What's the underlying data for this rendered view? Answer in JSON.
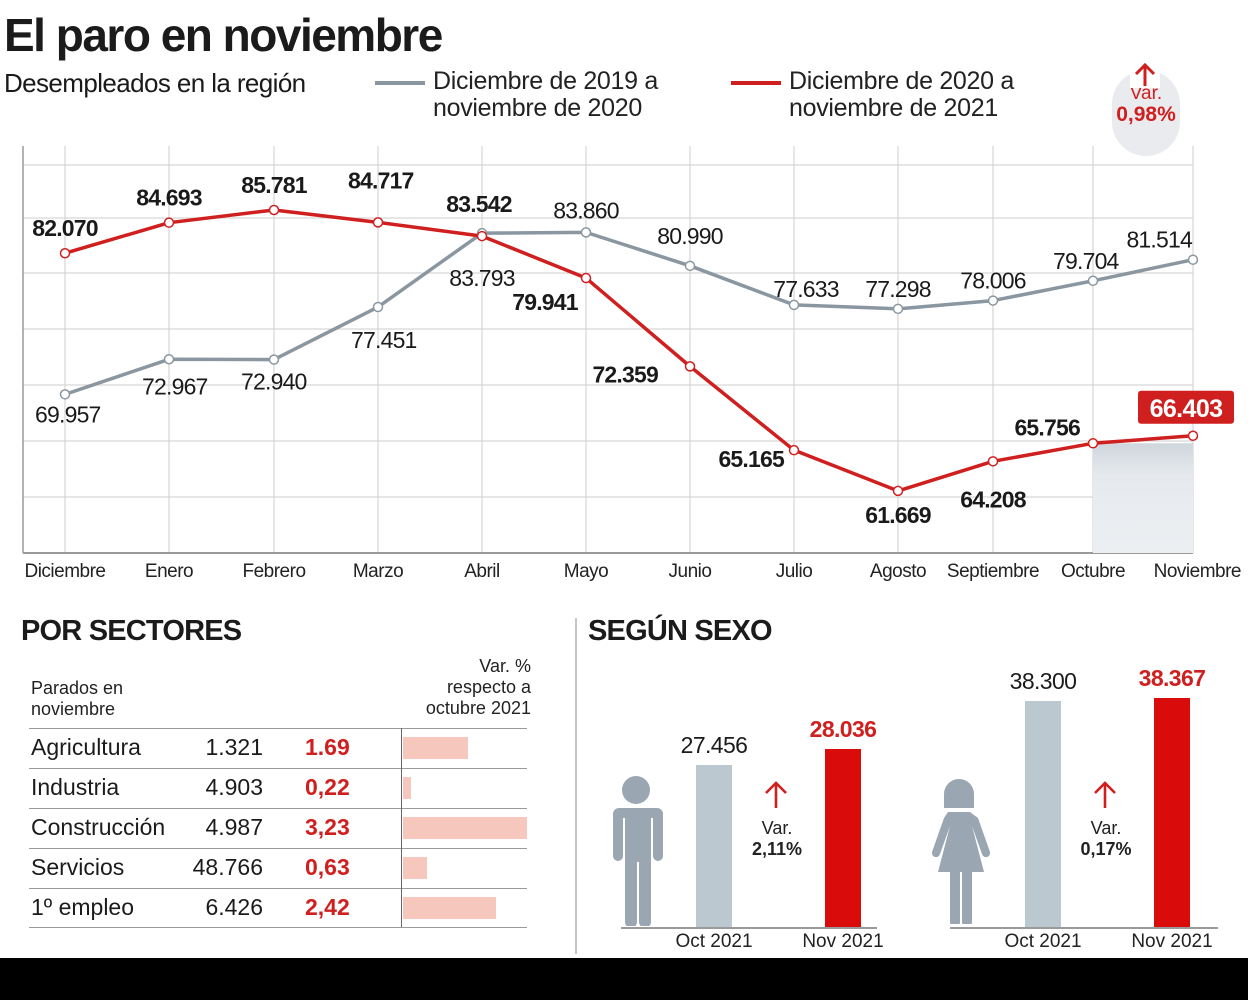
{
  "header": {
    "title": "El paro en noviembre",
    "subtitle": "Desempleados en la región",
    "legend": [
      {
        "line1": "Diciembre de 2019 a",
        "line2": "noviembre de 2020",
        "color": "#8a96a0"
      },
      {
        "line1": "Diciembre de 2020 a",
        "line2": "noviembre de 2021",
        "color": "#d01f1f"
      }
    ],
    "variation": {
      "label": "Var.",
      "value": "0,98%",
      "direction": "up"
    }
  },
  "chart_data": [
    {
      "type": "line",
      "title": "Desempleados en la región",
      "categories": [
        "Diciembre",
        "Enero",
        "Febrero",
        "Marzo",
        "Abril",
        "Mayo",
        "Junio",
        "Julio",
        "Agosto",
        "Septiembre",
        "Octubre",
        "Noviembre"
      ],
      "series": [
        {
          "name": "Diciembre de 2019 a noviembre de 2020",
          "color": "#8a96a0",
          "values": [
            69957,
            72967,
            72940,
            77451,
            83793,
            83860,
            80990,
            77633,
            77298,
            78006,
            79704,
            81514
          ],
          "labels": [
            "69.957",
            "72.967",
            "72.940",
            "77.451",
            "83.793",
            "83.860",
            "80.990",
            "77.633",
            "77.298",
            "78.006",
            "79.704",
            "81.514"
          ]
        },
        {
          "name": "Diciembre de 2020 a noviembre de 2021",
          "color": "#d01f1f",
          "values": [
            82070,
            84693,
            85781,
            84717,
            83542,
            79941,
            72359,
            65165,
            61669,
            64208,
            65756,
            66403
          ],
          "labels": [
            "82.070",
            "84.693",
            "85.781",
            "84.717",
            "83.542",
            "79.941",
            "72.359",
            "65.165",
            "61.669",
            "64.208",
            "65.756",
            "66.403"
          ]
        }
      ],
      "highlight": {
        "category": "Noviembre",
        "label": "66.403"
      },
      "grid": true,
      "legend_position": "top"
    },
    {
      "type": "table",
      "title": "POR SECTORES",
      "header_left": [
        "Parados en",
        "noviembre"
      ],
      "header_right": [
        "Var. %",
        "respecto a",
        "octubre 2021"
      ],
      "rows": [
        {
          "sector": "Agricultura",
          "parados": "1.321",
          "var": "1.69",
          "var_value": 1.69
        },
        {
          "sector": "Industria",
          "parados": "4.903",
          "var": "0,22",
          "var_value": 0.22
        },
        {
          "sector": "Construcción",
          "parados": "4.987",
          "var": "3,23",
          "var_value": 3.23
        },
        {
          "sector": "Servicios",
          "parados": "48.766",
          "var": "0,63",
          "var_value": 0.63
        },
        {
          "sector": "1º empleo",
          "parados": "6.426",
          "var": "2,42",
          "var_value": 2.42
        }
      ]
    },
    {
      "type": "bar",
      "title": "SEGÚN SEXO",
      "groups": [
        {
          "name": "Hombres",
          "icon": "man-icon",
          "categories": [
            "Oct 2021",
            "Nov 2021"
          ],
          "values": [
            27456,
            28036
          ],
          "labels": [
            "27.456",
            "28.036"
          ],
          "var_label": "Var.",
          "var": "2,11%"
        },
        {
          "name": "Mujeres",
          "icon": "woman-icon",
          "categories": [
            "Oct 2021",
            "Nov 2021"
          ],
          "values": [
            38300,
            38367
          ],
          "labels": [
            "38.300",
            "38.367"
          ],
          "var_label": "Var.",
          "var": "0,17%"
        }
      ],
      "colors": {
        "oct": "#bcc8d0",
        "nov": "#d90b0b"
      }
    }
  ]
}
